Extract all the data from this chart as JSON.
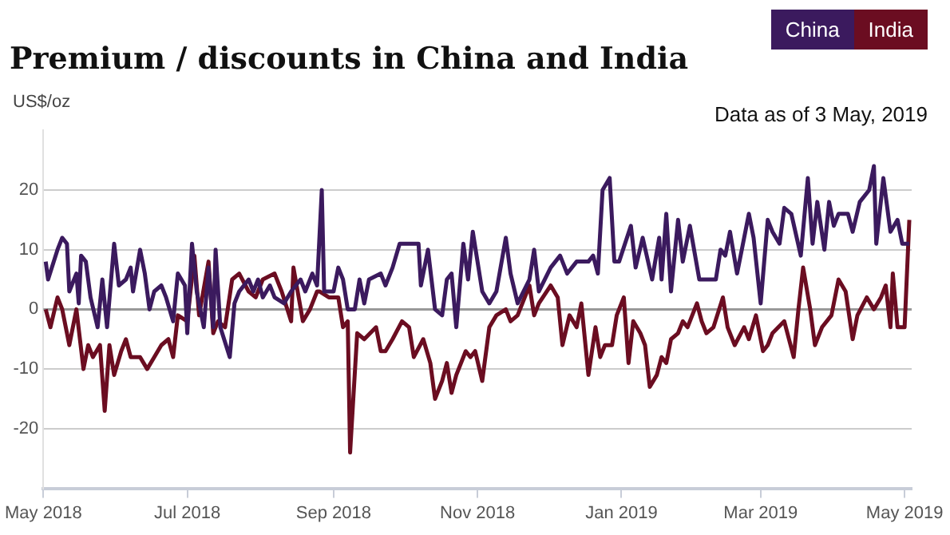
{
  "chart_data": {
    "type": "line",
    "title": "Premium / discounts in China and India",
    "ylabel": "US$/oz",
    "annotations": [
      "Data as of 3 May, 2019"
    ],
    "xlim": [
      "2018-05-01",
      "2019-05-04"
    ],
    "xticks": [
      {
        "value": "2018-05-01",
        "label": "May 2018"
      },
      {
        "value": "2018-07-01",
        "label": "Jul 2018"
      },
      {
        "value": "2018-09-01",
        "label": "Sep 2018"
      },
      {
        "value": "2018-11-01",
        "label": "Nov 2018"
      },
      {
        "value": "2019-01-01",
        "label": "Jan 2019"
      },
      {
        "value": "2019-03-01",
        "label": "Mar 2019"
      },
      {
        "value": "2019-05-01",
        "label": "May 2019"
      }
    ],
    "ylim": [
      -30,
      30
    ],
    "yticks": [
      -20,
      -10,
      0,
      10,
      20
    ],
    "grid": "y",
    "legend": "top right",
    "marker": "none",
    "line_style": "solid",
    "ref_lines": [
      {
        "axis": "y",
        "value": 0,
        "color": "#999999"
      }
    ],
    "series": [
      {
        "name": "China",
        "color": "#3b1a5e",
        "x": [
          "2018-05-02",
          "2018-05-03",
          "2018-05-07",
          "2018-05-09",
          "2018-05-11",
          "2018-05-12",
          "2018-05-15",
          "2018-05-16",
          "2018-05-17",
          "2018-05-19",
          "2018-05-21",
          "2018-05-24",
          "2018-05-26",
          "2018-05-28",
          "2018-05-31",
          "2018-06-02",
          "2018-06-05",
          "2018-06-07",
          "2018-06-08",
          "2018-06-11",
          "2018-06-13",
          "2018-06-15",
          "2018-06-17",
          "2018-06-20",
          "2018-06-22",
          "2018-06-25",
          "2018-06-27",
          "2018-06-30",
          "2018-07-01",
          "2018-07-03",
          "2018-07-05",
          "2018-07-08",
          "2018-07-10",
          "2018-07-12",
          "2018-07-13",
          "2018-07-15",
          "2018-07-19",
          "2018-07-21",
          "2018-07-23",
          "2018-07-27",
          "2018-07-29",
          "2018-07-31",
          "2018-08-02",
          "2018-08-05",
          "2018-08-07",
          "2018-08-11",
          "2018-08-14",
          "2018-08-18",
          "2018-08-20",
          "2018-08-23",
          "2018-08-25",
          "2018-08-27",
          "2018-08-28",
          "2018-09-01",
          "2018-09-03",
          "2018-09-05",
          "2018-09-07",
          "2018-09-10",
          "2018-09-12",
          "2018-09-14",
          "2018-09-16",
          "2018-09-21",
          "2018-09-23",
          "2018-09-26",
          "2018-09-29",
          "2018-10-07",
          "2018-10-08",
          "2018-10-11",
          "2018-10-14",
          "2018-10-17",
          "2018-10-19",
          "2018-10-21",
          "2018-10-23",
          "2018-10-26",
          "2018-10-28",
          "2018-10-30",
          "2018-11-03",
          "2018-11-06",
          "2018-11-09",
          "2018-11-13",
          "2018-11-15",
          "2018-11-18",
          "2018-11-23",
          "2018-11-25",
          "2018-11-27",
          "2018-12-02",
          "2018-12-06",
          "2018-12-09",
          "2018-12-13",
          "2018-12-18",
          "2018-12-20",
          "2018-12-22",
          "2018-12-24",
          "2018-12-27",
          "2018-12-29",
          "2018-12-31",
          "2019-01-05",
          "2019-01-07",
          "2019-01-10",
          "2019-01-14",
          "2019-01-17",
          "2019-01-18",
          "2019-01-20",
          "2019-01-22",
          "2019-01-25",
          "2019-01-27",
          "2019-01-30",
          "2019-02-03",
          "2019-02-10",
          "2019-02-12",
          "2019-02-14",
          "2019-02-16",
          "2019-02-19",
          "2019-02-21",
          "2019-02-24",
          "2019-02-26",
          "2019-03-01",
          "2019-03-04",
          "2019-03-06",
          "2019-03-09",
          "2019-03-11",
          "2019-03-14",
          "2019-03-18",
          "2019-03-21",
          "2019-03-23",
          "2019-03-25",
          "2019-03-28",
          "2019-03-30",
          "2019-04-01",
          "2019-04-03",
          "2019-04-07",
          "2019-04-09",
          "2019-04-12",
          "2019-04-16",
          "2019-04-18",
          "2019-04-19",
          "2019-04-22",
          "2019-04-25",
          "2019-04-28",
          "2019-04-30",
          "2019-05-03"
        ],
        "values": [
          8,
          5,
          10,
          12,
          11,
          3,
          6,
          1,
          9,
          8,
          2,
          -3,
          5,
          -3,
          11,
          4,
          5,
          7,
          3,
          10,
          6,
          0,
          3,
          4,
          2,
          -2,
          6,
          4,
          -4,
          11,
          3,
          -3,
          7,
          -3,
          10,
          -3,
          -8,
          1,
          3,
          5,
          3,
          5,
          2,
          4,
          2,
          1,
          3,
          5,
          3,
          6,
          4,
          20,
          3,
          3,
          7,
          5,
          0,
          0,
          5,
          1,
          5,
          6,
          4,
          7,
          11,
          11,
          4,
          10,
          0,
          -1,
          5,
          6,
          -3,
          11,
          5,
          13,
          3,
          1,
          3,
          12,
          6,
          1,
          5,
          10,
          3,
          7,
          9,
          6,
          8,
          8,
          9,
          6,
          20,
          22,
          8,
          8,
          14,
          7,
          12,
          5,
          12,
          5,
          16,
          3,
          15,
          8,
          14,
          5,
          5,
          10,
          9,
          13,
          6,
          10,
          16,
          12,
          1,
          15,
          13,
          11,
          17,
          16,
          9,
          22,
          11,
          18,
          10,
          18,
          14,
          16,
          16,
          13,
          18,
          20,
          24,
          11,
          22,
          13,
          15,
          11,
          11
        ]
      },
      {
        "name": "India",
        "color": "#6b0d21",
        "x": [
          "2018-05-02",
          "2018-05-04",
          "2018-05-07",
          "2018-05-09",
          "2018-05-11",
          "2018-05-12",
          "2018-05-15",
          "2018-05-18",
          "2018-05-20",
          "2018-05-22",
          "2018-05-25",
          "2018-05-27",
          "2018-05-29",
          "2018-05-31",
          "2018-06-03",
          "2018-06-05",
          "2018-06-07",
          "2018-06-11",
          "2018-06-14",
          "2018-06-17",
          "2018-06-20",
          "2018-06-23",
          "2018-06-25",
          "2018-06-27",
          "2018-07-01",
          "2018-07-04",
          "2018-07-06",
          "2018-07-10",
          "2018-07-12",
          "2018-07-14",
          "2018-07-17",
          "2018-07-20",
          "2018-07-23",
          "2018-07-27",
          "2018-07-30",
          "2018-08-02",
          "2018-08-07",
          "2018-08-10",
          "2018-08-14",
          "2018-08-15",
          "2018-08-19",
          "2018-08-22",
          "2018-08-25",
          "2018-08-26",
          "2018-08-30",
          "2018-09-03",
          "2018-09-05",
          "2018-09-07",
          "2018-09-08",
          "2018-09-11",
          "2018-09-14",
          "2018-09-19",
          "2018-09-21",
          "2018-09-23",
          "2018-09-26",
          "2018-09-30",
          "2018-10-03",
          "2018-10-05",
          "2018-10-09",
          "2018-10-12",
          "2018-10-14",
          "2018-10-17",
          "2018-10-19",
          "2018-10-21",
          "2018-10-23",
          "2018-10-27",
          "2018-10-29",
          "2018-10-31",
          "2018-11-03",
          "2018-11-06",
          "2018-11-09",
          "2018-11-13",
          "2018-11-15",
          "2018-11-18",
          "2018-11-23",
          "2018-11-25",
          "2018-11-27",
          "2018-12-02",
          "2018-12-05",
          "2018-12-07",
          "2018-12-10",
          "2018-12-13",
          "2018-12-15",
          "2018-12-18",
          "2018-12-21",
          "2018-12-23",
          "2018-12-25",
          "2018-12-28",
          "2018-12-30",
          "2019-01-02",
          "2019-01-04",
          "2019-01-06",
          "2019-01-09",
          "2019-01-11",
          "2019-01-13",
          "2019-01-16",
          "2019-01-18",
          "2019-01-20",
          "2019-01-22",
          "2019-01-25",
          "2019-01-27",
          "2019-01-29",
          "2019-02-02",
          "2019-02-04",
          "2019-02-06",
          "2019-02-09",
          "2019-02-13",
          "2019-02-15",
          "2019-02-18",
          "2019-02-22",
          "2019-02-24",
          "2019-02-27",
          "2019-03-02",
          "2019-03-04",
          "2019-03-06",
          "2019-03-11",
          "2019-03-15",
          "2019-03-17",
          "2019-03-19",
          "2019-03-22",
          "2019-03-24",
          "2019-03-27",
          "2019-03-31",
          "2019-04-03",
          "2019-04-06",
          "2019-04-09",
          "2019-04-11",
          "2019-04-15",
          "2019-04-18",
          "2019-04-21",
          "2019-04-23",
          "2019-04-25",
          "2019-04-26",
          "2019-04-28",
          "2019-05-01",
          "2019-05-03"
        ],
        "values": [
          0,
          -3,
          2,
          0,
          -4,
          -6,
          0,
          -10,
          -6,
          -8,
          -6,
          -17,
          -6,
          -11,
          -7,
          -5,
          -8,
          -8,
          -10,
          -8,
          -6,
          -5,
          -8,
          -1,
          -2,
          9,
          -1,
          8,
          -4,
          -2,
          -3,
          5,
          6,
          3,
          2,
          5,
          6,
          3,
          -2,
          7,
          -2,
          0,
          3,
          3,
          2,
          2,
          -3,
          -2,
          -24,
          -4,
          -5,
          -3,
          -7,
          -7,
          -5,
          -2,
          -3,
          -8,
          -5,
          -9,
          -15,
          -12,
          -9,
          -14,
          -11,
          -7,
          -8,
          -7,
          -12,
          -3,
          -1,
          0,
          -2,
          -1,
          4,
          -1,
          1,
          4,
          2,
          -6,
          -1,
          -3,
          1,
          -11,
          -3,
          -8,
          -6,
          -6,
          -1,
          2,
          -9,
          -2,
          -4,
          -6,
          -13,
          -11,
          -8,
          -9,
          -5,
          -4,
          -2,
          -3,
          1,
          -2,
          -4,
          -3,
          2,
          -3,
          -6,
          -3,
          -5,
          -1,
          -7,
          -6,
          -4,
          -2,
          -8,
          0,
          7,
          0,
          -6,
          -3,
          -1,
          5,
          3,
          -5,
          -1,
          2,
          0,
          2,
          4,
          -3,
          6,
          -3,
          -3,
          15
        ]
      }
    ]
  }
}
